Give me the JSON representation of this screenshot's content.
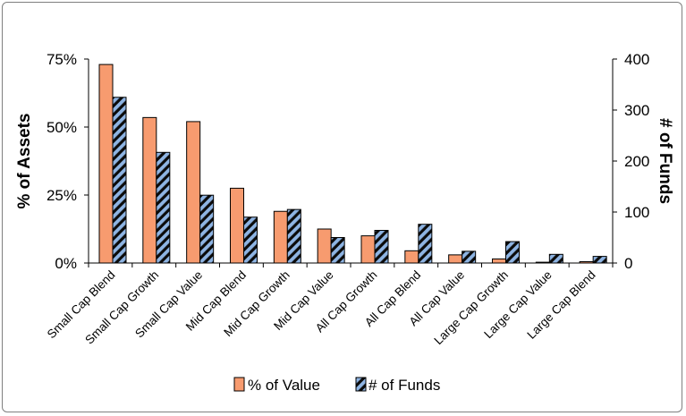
{
  "chart_data": {
    "type": "bar",
    "title": "",
    "xlabel": "",
    "categories": [
      "Small Cap Blend",
      "Small Cap Growth",
      "Small Cap Value",
      "Mid Cap Blend",
      "Mid Cap Growth",
      "Mid Cap Value",
      "All Cap Growth",
      "All Cap Blend",
      "All Cap Value",
      "Large Cap Growth",
      "Large Cap Value",
      "Large Cap Blend"
    ],
    "series": [
      {
        "name": "% of Value",
        "axis": "left",
        "color": "#F79B6F",
        "values": [
          73,
          53.5,
          52,
          27.5,
          19,
          12.5,
          10,
          4.5,
          3,
          1.5,
          0.3,
          0.5
        ]
      },
      {
        "name": "# of Funds",
        "axis": "right",
        "color": "#8EB4E3",
        "pattern": "diagonal stripes",
        "values": [
          325,
          217,
          133,
          90,
          105,
          50,
          64,
          76,
          23,
          42,
          17,
          13
        ]
      }
    ],
    "y_left": {
      "label": "% of Assets",
      "ylim": [
        0,
        75
      ],
      "ticks": [
        0,
        25,
        50,
        75
      ],
      "tick_labels": [
        "0%",
        "25%",
        "50%",
        "75%"
      ]
    },
    "y_right": {
      "label": "# of Funds",
      "ylim": [
        0,
        400
      ],
      "ticks": [
        0,
        100,
        200,
        300,
        400
      ],
      "tick_labels": [
        "0",
        "100",
        "200",
        "300",
        "400"
      ]
    },
    "grid": false,
    "legend_position": "bottom"
  }
}
